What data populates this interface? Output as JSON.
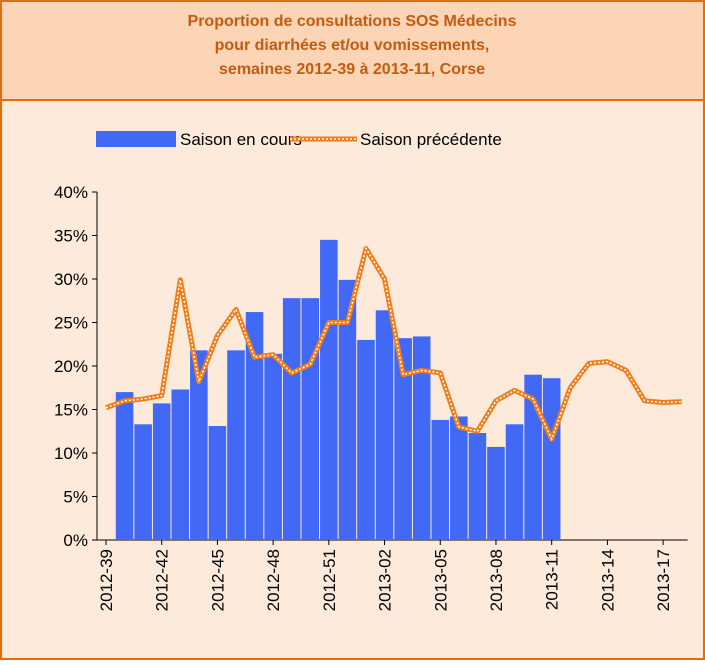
{
  "chart_data": {
    "type": "bar-line",
    "title": "Proportion de consultations SOS Médecins",
    "subtitle": [
      "pour diarrhées et/ou vomissements,",
      "semaines 2012-39 à 2013-11, Corse"
    ],
    "categories": [
      "2012-39",
      null,
      null,
      "2012-42",
      null,
      null,
      "2012-45",
      null,
      null,
      "2012-48",
      null,
      null,
      "2012-51",
      null,
      null,
      "2013-02",
      null,
      null,
      "2013-05",
      null,
      null,
      "2013-08",
      null,
      null,
      "2013-11",
      null,
      null,
      "2013-14",
      null,
      null,
      "2013-17",
      null
    ],
    "series": [
      {
        "name": "Saison en cours",
        "type": "bar",
        "color": "#4169f5",
        "values": [
          null,
          17.0,
          13.3,
          15.7,
          17.3,
          21.8,
          13.1,
          21.8,
          26.2,
          21.4,
          27.8,
          27.8,
          34.5,
          29.9,
          23.0,
          26.4,
          23.2,
          23.4,
          13.8,
          14.2,
          12.3,
          10.7,
          13.3,
          19.0,
          18.6,
          null,
          null,
          null,
          null,
          null,
          null,
          null
        ]
      },
      {
        "name": "Saison précédente",
        "type": "line",
        "color": "#f07d1a",
        "values": [
          15.2,
          16.0,
          16.2,
          16.6,
          29.9,
          18.2,
          23.5,
          26.5,
          21.0,
          21.3,
          19.2,
          20.2,
          25.0,
          25.0,
          33.5,
          30.0,
          19.0,
          19.5,
          19.2,
          13.0,
          12.5,
          16.0,
          17.2,
          16.2,
          11.6,
          17.5,
          20.3,
          20.5,
          19.5,
          16.0,
          15.8,
          15.9
        ]
      }
    ],
    "ylim": [
      0,
      40
    ],
    "yticks": [
      {
        "value": 0,
        "label": "0%"
      },
      {
        "value": 5,
        "label": "5%"
      },
      {
        "value": 10,
        "label": "10%"
      },
      {
        "value": 15,
        "label": "15%"
      },
      {
        "value": 20,
        "label": "20%"
      },
      {
        "value": 25,
        "label": "25%"
      },
      {
        "value": 30,
        "label": "30%"
      },
      {
        "value": 35,
        "label": "35%"
      },
      {
        "value": 40,
        "label": "40%"
      }
    ],
    "legend": "top"
  }
}
